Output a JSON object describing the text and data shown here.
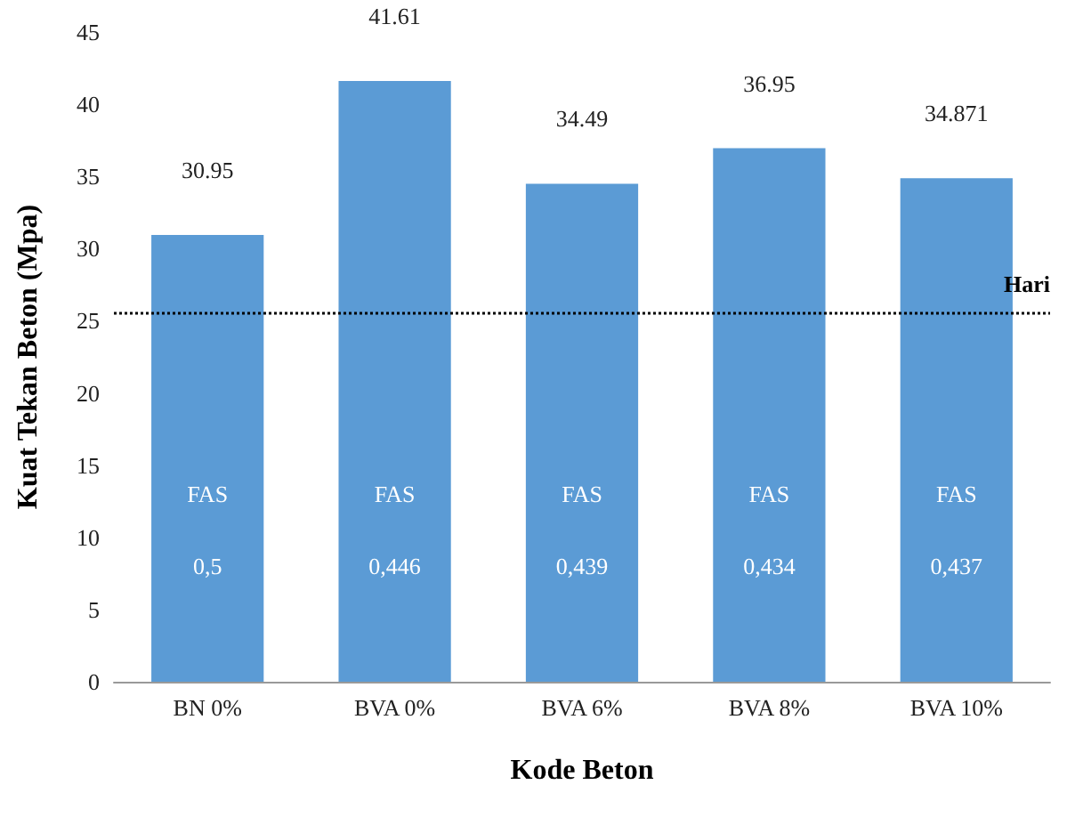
{
  "chart_data": {
    "type": "bar",
    "xlabel": "Kode Beton",
    "ylabel": "Kuat Tekan Beton (Mpa)",
    "categories": [
      "BN 0%",
      "BVA 0%",
      "BVA 6%",
      "BVA 8%",
      "BVA 10%"
    ],
    "values": [
      30.95,
      41.61,
      34.49,
      36.95,
      34.871
    ],
    "color": "#5b9bd5",
    "data_labels": true,
    "ylim": [
      0,
      45
    ],
    "yticks": [
      0,
      5,
      10,
      15,
      20,
      25,
      30,
      35,
      40,
      45
    ],
    "grid": false,
    "ref_lines": [
      {
        "axis": "y",
        "value": 25.5,
        "label": "Hari",
        "color": "#000000",
        "line_style": "dotted"
      }
    ],
    "annotations": [
      "FAS",
      "FAS",
      "FAS",
      "FAS",
      "FAS",
      "0,5",
      "0,446",
      "0,439",
      "0,434",
      "0,437"
    ]
  }
}
